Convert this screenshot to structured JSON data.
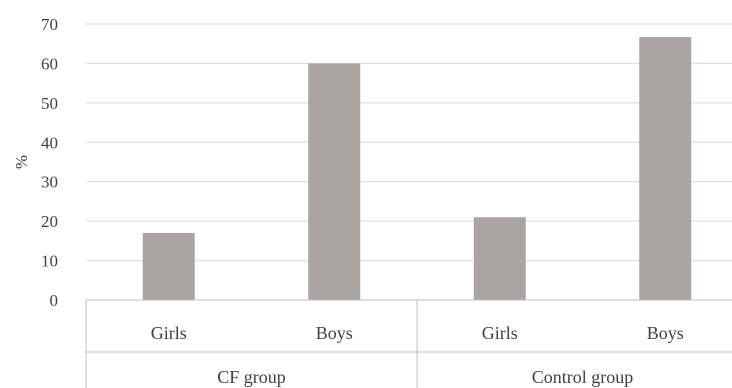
{
  "chart_data": {
    "type": "bar",
    "title": "",
    "xlabel": "",
    "ylabel": "%",
    "ylim": [
      0,
      70
    ],
    "yticks": [
      "0",
      "10",
      "20",
      "30",
      "40",
      "50",
      "60",
      "70"
    ],
    "grid": true,
    "legend": "none",
    "bar_color": "#aaa5a3",
    "groups": [
      {
        "name": "CF group",
        "categories": [
          "Girls",
          "Boys"
        ],
        "values": [
          17,
          60
        ]
      },
      {
        "name": "Control group",
        "categories": [
          "Girls",
          "Boys"
        ],
        "values": [
          21,
          66.7
        ]
      }
    ]
  }
}
